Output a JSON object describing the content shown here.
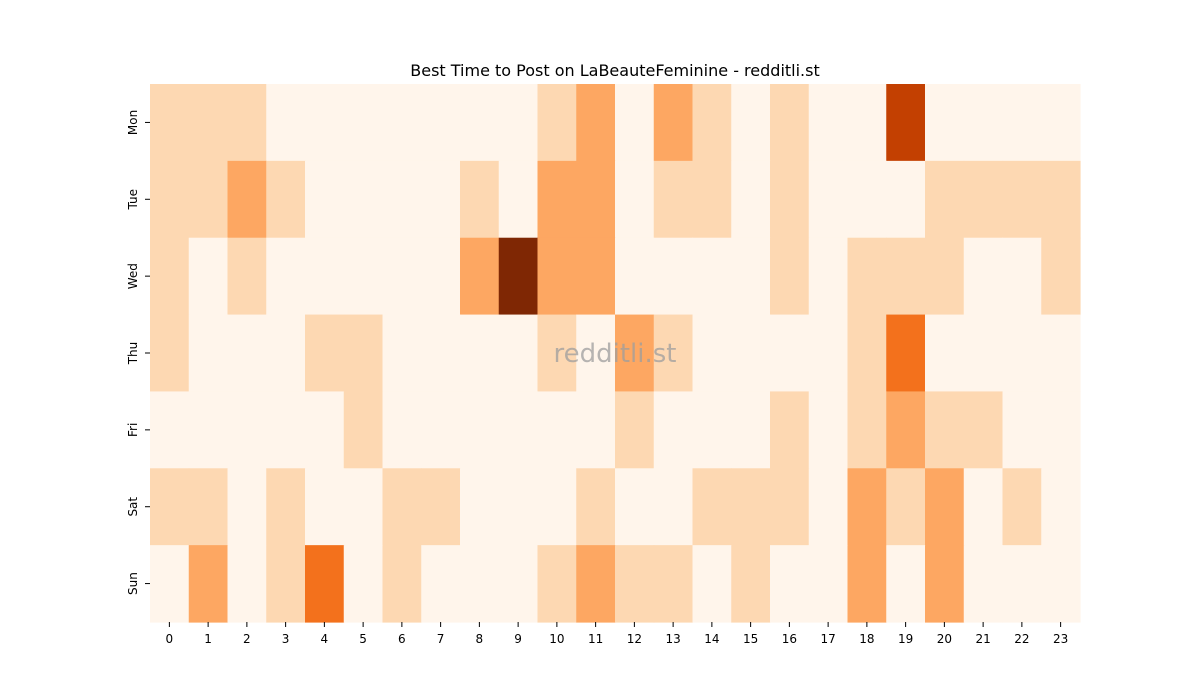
{
  "chart_data": {
    "type": "heatmap",
    "title": "Best Time to Post on LaBeauteFeminine - redditli.st",
    "xlabel": "",
    "ylabel": "",
    "x_categories": [
      "0",
      "1",
      "2",
      "3",
      "4",
      "5",
      "6",
      "7",
      "8",
      "9",
      "10",
      "11",
      "12",
      "13",
      "14",
      "15",
      "16",
      "17",
      "18",
      "19",
      "20",
      "21",
      "22",
      "23"
    ],
    "y_categories": [
      "Mon",
      "Tue",
      "Wed",
      "Thu",
      "Fri",
      "Sat",
      "Sun"
    ],
    "colormap": "Oranges",
    "value_range": [
      0,
      5
    ],
    "values": [
      [
        1,
        1,
        1,
        0,
        0,
        0,
        0,
        0,
        0,
        0,
        1,
        2,
        0,
        2,
        1,
        0,
        1,
        0,
        0,
        4,
        0,
        0,
        0,
        0
      ],
      [
        1,
        1,
        2,
        1,
        0,
        0,
        0,
        0,
        1,
        0,
        2,
        2,
        0,
        1,
        1,
        0,
        1,
        0,
        0,
        0,
        1,
        1,
        1,
        1
      ],
      [
        1,
        0,
        1,
        0,
        0,
        0,
        0,
        0,
        2,
        5,
        2,
        2,
        0,
        0,
        0,
        0,
        1,
        0,
        1,
        1,
        1,
        0,
        0,
        1
      ],
      [
        1,
        0,
        0,
        0,
        1,
        1,
        0,
        0,
        0,
        0,
        1,
        0,
        2,
        1,
        0,
        0,
        0,
        0,
        1,
        3,
        0,
        0,
        0,
        0
      ],
      [
        0,
        0,
        0,
        0,
        0,
        1,
        0,
        0,
        0,
        0,
        0,
        0,
        1,
        0,
        0,
        0,
        1,
        0,
        1,
        2,
        1,
        1,
        0,
        0
      ],
      [
        1,
        1,
        0,
        1,
        0,
        0,
        1,
        1,
        0,
        0,
        0,
        1,
        0,
        0,
        1,
        1,
        1,
        0,
        2,
        1,
        2,
        0,
        1,
        0
      ],
      [
        0,
        2,
        0,
        1,
        3,
        0,
        1,
        0,
        0,
        0,
        1,
        2,
        1,
        1,
        0,
        1,
        0,
        0,
        2,
        0,
        2,
        0,
        0,
        0
      ]
    ],
    "color_levels": [
      "#fff5eb",
      "#fdd8b2",
      "#fda762",
      "#f3711c",
      "#c34001",
      "#7f2704"
    ],
    "watermark": "redditli.st",
    "grid": false,
    "legend": "none"
  }
}
